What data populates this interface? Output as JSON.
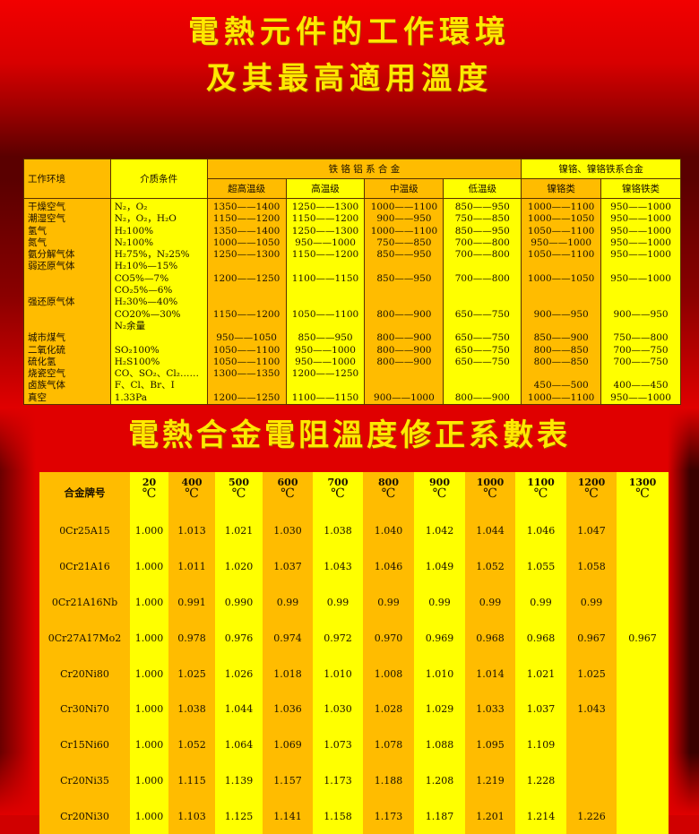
{
  "title1_line1": "電熱元件的工作環境",
  "title1_line2": "及其最高適用溫度",
  "table1": {
    "header": {
      "environment": "工作环境",
      "medium": "介质条件",
      "group_fecral": "铁 铬 铝 系 合 金",
      "group_nicr": "镍铬、镍铬铁系合金",
      "subcols": [
        "超高温级",
        "高温级",
        "中温级",
        "低温级",
        "镍铬类",
        "镍铬铁类"
      ]
    },
    "rows": [
      [
        "干燥空气",
        "N₂，O₂",
        "1350——1400",
        "1250——1300",
        "1000——1100",
        "850——950",
        "1000——1100",
        "950——1000"
      ],
      [
        "潮湿空气",
        "N₂，O₂，H₂O",
        "1150——1200",
        "1150——1200",
        "900——950",
        "750——850",
        "1000——1050",
        "950——1000"
      ],
      [
        "氢气",
        "H₂100%",
        "1350——1400",
        "1250——1300",
        "1000——1100",
        "850——950",
        "1050——1100",
        "950——1000"
      ],
      [
        "氮气",
        "N₂100%",
        "1000——1050",
        "950——1000",
        "750——850",
        "700——800",
        "950——1000",
        "950——1000"
      ],
      [
        "氨分解气体",
        "H₂75%，N₂25%",
        "1250——1300",
        "1150——1200",
        "850——950",
        "700——800",
        "1050——1100",
        "950——1000"
      ],
      [
        "弱还原气体",
        "H₂10%—15%",
        "",
        "",
        "",
        "",
        "",
        ""
      ],
      [
        "",
        "CO5%—7%",
        "1200——1250",
        "1100——1150",
        "850——950",
        "700——800",
        "1000——1050",
        "950——1000"
      ],
      [
        "",
        "CO₂5%—6%",
        "",
        "",
        "",
        "",
        "",
        ""
      ],
      [
        "强还原气体",
        "H₂30%—40%",
        "",
        "",
        "",
        "",
        "",
        ""
      ],
      [
        "",
        "CO20%—30%",
        "1150——1200",
        "1050——1100",
        "800——900",
        "650——750",
        "900——950",
        "900——950"
      ],
      [
        "",
        "N₂余量",
        "",
        "",
        "",
        "",
        "",
        ""
      ],
      [
        "城市煤气",
        "",
        "950——1050",
        "850——950",
        "800——900",
        "650——750",
        "850——900",
        "750——800"
      ],
      [
        "二氧化硫",
        "SO₂100%",
        "1050——1100",
        "950——1000",
        "800——900",
        "650——750",
        "800——850",
        "700——750"
      ],
      [
        "硫化氢",
        "H₂S100%",
        "1050——1100",
        "950——1000",
        "800——900",
        "650——750",
        "800——850",
        "700——750"
      ],
      [
        "烧瓷空气",
        "CO、SO₂、Cl₂……",
        "1300——1350",
        "1200——1250",
        "",
        "",
        "",
        ""
      ],
      [
        "卤族气体",
        "F、Cl、Br、I",
        "",
        "",
        "",
        "",
        "450——500",
        "400——450"
      ],
      [
        "真空",
        "1.33Pa",
        "1200——1250",
        "1100——1150",
        "900——1000",
        "800——900",
        "1000——1100",
        "950——1000"
      ]
    ]
  },
  "title2": "電熱合金電阻溫度修正系數表",
  "table2": {
    "name_header": "合金牌号",
    "unit": "℃",
    "temps": [
      "20",
      "400",
      "500",
      "600",
      "700",
      "800",
      "900",
      "1000",
      "1100",
      "1200",
      "1300"
    ],
    "rows": [
      {
        "alloy": "0Cr25A15",
        "values": [
          "1.000",
          "1.013",
          "1.021",
          "1.030",
          "1.038",
          "1.040",
          "1.042",
          "1.044",
          "1.046",
          "1.047",
          ""
        ]
      },
      {
        "alloy": "0Cr21A16",
        "values": [
          "1.000",
          "1.011",
          "1.020",
          "1.037",
          "1.043",
          "1.046",
          "1.049",
          "1.052",
          "1.055",
          "1.058",
          ""
        ]
      },
      {
        "alloy": "0Cr21A16Nb",
        "values": [
          "1.000",
          "0.991",
          "0.990",
          "0.99",
          "0.99",
          "0.99",
          "0.99",
          "0.99",
          "0.99",
          "0.99",
          ""
        ]
      },
      {
        "alloy": "0Cr27A17Mo2",
        "values": [
          "1.000",
          "0.978",
          "0.976",
          "0.974",
          "0.972",
          "0.970",
          "0.969",
          "0.968",
          "0.968",
          "0.967",
          "0.967"
        ]
      },
      {
        "alloy": "Cr20Ni80",
        "values": [
          "1.000",
          "1.025",
          "1.026",
          "1.018",
          "1.010",
          "1.008",
          "1.010",
          "1.014",
          "1.021",
          "1.025",
          ""
        ]
      },
      {
        "alloy": "Cr30Ni70",
        "values": [
          "1.000",
          "1.038",
          "1.044",
          "1.036",
          "1.030",
          "1.028",
          "1.029",
          "1.033",
          "1.037",
          "1.043",
          ""
        ]
      },
      {
        "alloy": "Cr15Ni60",
        "values": [
          "1.000",
          "1.052",
          "1.064",
          "1.069",
          "1.073",
          "1.078",
          "1.088",
          "1.095",
          "1.109",
          "",
          ""
        ]
      },
      {
        "alloy": "Cr20Ni35",
        "values": [
          "1.000",
          "1.115",
          "1.139",
          "1.157",
          "1.173",
          "1.188",
          "1.208",
          "1.219",
          "1.228",
          "",
          ""
        ]
      },
      {
        "alloy": "Cr20Ni30",
        "values": [
          "1.000",
          "1.103",
          "1.125",
          "1.141",
          "1.158",
          "1.173",
          "1.187",
          "1.201",
          "1.214",
          "1.226",
          ""
        ]
      }
    ]
  },
  "colors": {
    "orange": "#ffbc00",
    "yellow": "#ffff00",
    "title": "#ffe800",
    "background": "#e00000"
  }
}
